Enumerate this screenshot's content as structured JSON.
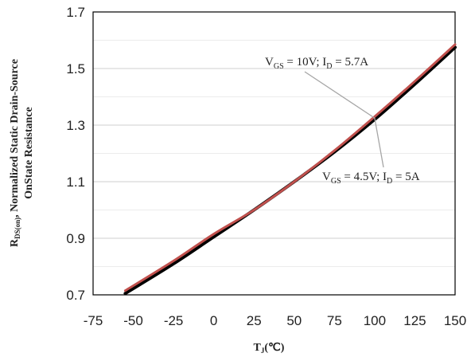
{
  "chart_data": {
    "type": "line",
    "xlabel": {
      "main": "T",
      "sub": "J",
      "unit": "(℃)"
    },
    "ylabel": {
      "line1_main": "R",
      "line1_sub": "DS(on)",
      "line1_rest": ", Normalized Static Drain-Source",
      "line2": "OnState Resistance"
    },
    "xlim": [
      -75,
      150
    ],
    "ylim": [
      0.7,
      1.7
    ],
    "x_ticks": [
      "-75",
      "-50",
      "-25",
      "0",
      "25",
      "50",
      "75",
      "100",
      "125",
      "150"
    ],
    "y_ticks": [
      "0.7",
      "0.9",
      "1.1",
      "1.3",
      "1.5",
      "1.7"
    ],
    "y_minor_step": 0.1,
    "grid": true,
    "series": [
      {
        "name": "VGS = 4.5V; ID = 5A",
        "color": "#000000",
        "x": [
          -55,
          -25,
          0,
          25,
          50,
          75,
          100,
          125,
          150
        ],
        "y": [
          0.705,
          0.81,
          0.905,
          1.0,
          1.1,
          1.205,
          1.32,
          1.445,
          1.575
        ]
      },
      {
        "name": "VGS = 10V; ID = 5.7A",
        "color": "#c0504d",
        "x": [
          -55,
          -25,
          0,
          25,
          50,
          75,
          100,
          125,
          150
        ],
        "y": [
          0.715,
          0.82,
          0.915,
          1.0,
          1.1,
          1.21,
          1.33,
          1.455,
          1.585
        ]
      }
    ],
    "annotations": [
      {
        "v": "V",
        "vsub": "GS",
        "vval": " = 10V; ",
        "i": "I",
        "isub": "D",
        "ival": " = 5.7A"
      },
      {
        "v": "V",
        "vsub": "GS",
        "vval": " = 4.5V; ",
        "i": "I",
        "isub": "D",
        "ival": " = 5A"
      }
    ]
  }
}
